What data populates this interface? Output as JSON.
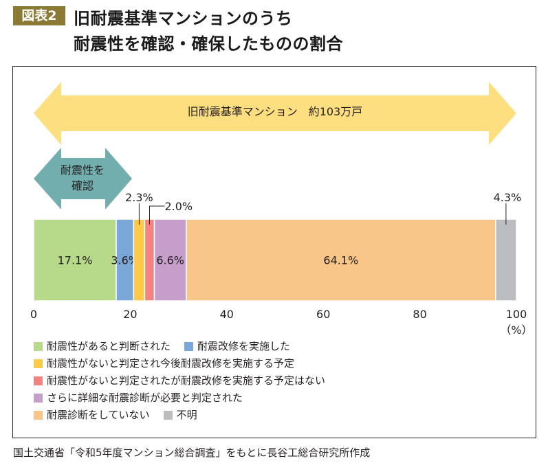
{
  "header": {
    "badge": "図表2",
    "title_line1": "旧耐震基準マンションのうち",
    "title_line2": "耐震性を確認・確保したものの割合"
  },
  "annotations": {
    "total_arrow_label": "旧耐震基準マンション　約103万戸",
    "confirm_arrow_line1": "耐震性を",
    "confirm_arrow_line2": "確認",
    "colors": {
      "total_arrow": "#fddf80",
      "confirm_arrow": "#72aeae"
    }
  },
  "chart_data": {
    "type": "bar",
    "orientation": "horizontal-stacked-100",
    "title": "旧耐震基準マンションのうち耐震性を確認・確保したものの割合",
    "xlabel": "(%)",
    "xlim": [
      0,
      100
    ],
    "xticks": [
      "0",
      "20",
      "40",
      "60",
      "80",
      "100"
    ],
    "unit_label": "（%）",
    "series": [
      {
        "name": "耐震性があると判断された",
        "value": 17.1,
        "label": "17.1%",
        "color": "#b7d98a",
        "label_pos": "inside"
      },
      {
        "name": "耐震改修を実施した",
        "value": 3.6,
        "label": "3.6%",
        "color": "#7ba6d8",
        "label_pos": "inside"
      },
      {
        "name": "耐震性がないと判定され今後耐震改修を実施する予定",
        "value": 2.3,
        "label": "2.3%",
        "color": "#fdc94a",
        "label_pos": "above"
      },
      {
        "name": "耐震性がないと判定されたが耐震改修を実施する予定はない",
        "value": 2.0,
        "label": "2.0%",
        "color": "#f2837f",
        "label_pos": "above-right"
      },
      {
        "name": "さらに詳細な耐震診断が必要と判定された",
        "value": 6.6,
        "label": "6.6%",
        "color": "#c59ec9",
        "label_pos": "inside"
      },
      {
        "name": "耐震診断をしていない",
        "value": 64.1,
        "label": "64.1%",
        "color": "#f9c68a",
        "label_pos": "inside"
      },
      {
        "name": "不明",
        "value": 4.3,
        "label": "4.3%",
        "color": "#bcbdc0",
        "label_pos": "above"
      }
    ],
    "legend": [
      [
        "耐震性があると判断された",
        "耐震改修を実施した"
      ],
      [
        "耐震性がないと判定され今後耐震改修を実施する予定"
      ],
      [
        "耐震性がないと判定されたが耐震改修を実施する予定はない"
      ],
      [
        "さらに詳細な耐震診断が必要と判定された"
      ],
      [
        "耐震診断をしていない",
        "不明"
      ]
    ],
    "legend_position": "bottom-left",
    "grid": false
  },
  "source": "国土交通省「令和5年度マンション総合調査」をもとに長谷工総合研究所作成"
}
